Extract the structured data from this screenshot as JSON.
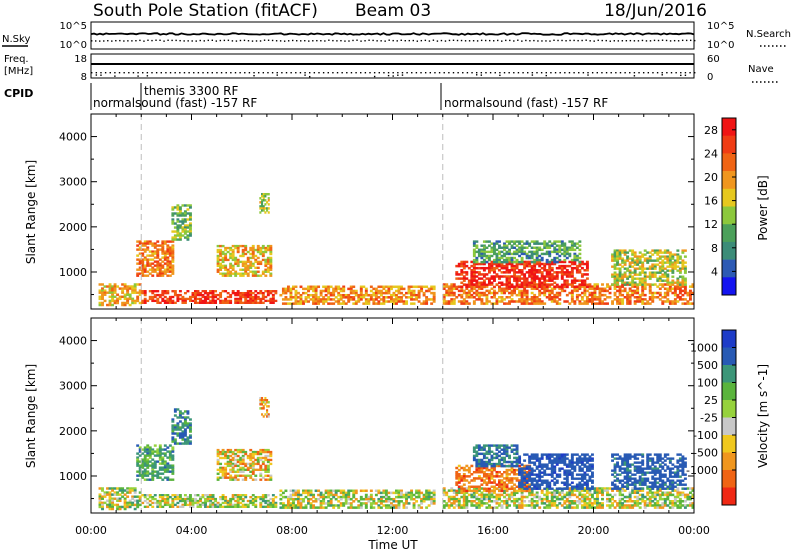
{
  "header": {
    "station": "South Pole Station (fitACF)",
    "beam": "Beam 03",
    "date": "18/Jun/2016"
  },
  "summary": {
    "nsky_label": "N.Sky",
    "nsearch_label": "N.Search",
    "freq_label_line1": "Freq.",
    "freq_label_line2": "[MHz]",
    "nave_label": "Nave",
    "cpid_label": "CPID",
    "nsky_ticks": [
      "10^5",
      "10^0"
    ],
    "nsearch_ticks": [
      "10^5",
      "10^0"
    ],
    "freq_ticks": [
      "18",
      "8"
    ],
    "nave_ticks": [
      "60",
      "0"
    ],
    "cpid_entries": [
      {
        "text": "normalsound (fast) -157 RF",
        "start_hour": 0.0
      },
      {
        "text": "themis 3300 RF",
        "start_hour": 2.0
      },
      {
        "text": "normalsound (fast) -157 RF",
        "start_hour": 14.0
      }
    ]
  },
  "x_ticks": [
    "00:00",
    "04:00",
    "08:00",
    "12:00",
    "16:00",
    "20:00",
    "00:00"
  ],
  "x_label": "Time UT",
  "y_label": "Slant Range [km]",
  "y_ticks": [
    "1000",
    "2000",
    "3000",
    "4000"
  ],
  "power_colorbar": {
    "label": "Power [dB]",
    "ticks": [
      "4",
      "8",
      "12",
      "16",
      "20",
      "24",
      "28"
    ],
    "colors": [
      "#1414f0",
      "#2d5ab4",
      "#3c8c78",
      "#4ba05a",
      "#8cc83c",
      "#e6c81e",
      "#f0961e",
      "#f06414",
      "#f03c14",
      "#f01414"
    ]
  },
  "velocity_colorbar": {
    "label": "Velocity [m s^-1]",
    "ticks": [
      "1000",
      "500",
      "100",
      "25",
      "-25",
      "-100",
      "-500",
      "-1000"
    ],
    "colors": [
      "#1e3cc8",
      "#285ab4",
      "#3c9678",
      "#5ab43c",
      "#96d23c",
      "#c8c8c8",
      "#f0c81e",
      "#f0961e",
      "#f06414",
      "#f02814"
    ]
  },
  "chart_data": [
    {
      "type": "heatmap",
      "title": "Power",
      "xlabel": "Time UT",
      "ylabel": "Slant Range [km]",
      "xlim_hours": [
        0,
        24
      ],
      "ylim_km": [
        180,
        4500
      ],
      "colorbar": {
        "label": "Power [dB]",
        "range": [
          0,
          30
        ]
      },
      "regions": [
        {
          "t0": 0.3,
          "t1": 2.0,
          "r0": 250,
          "r1": 750,
          "value": 18
        },
        {
          "t0": 1.8,
          "t1": 3.3,
          "r0": 900,
          "r1": 1700,
          "value": 22
        },
        {
          "t0": 2.0,
          "t1": 7.4,
          "r0": 300,
          "r1": 600,
          "value": 26
        },
        {
          "t0": 3.2,
          "t1": 4.0,
          "r0": 1700,
          "r1": 2500,
          "value": 12
        },
        {
          "t0": 5.0,
          "t1": 7.2,
          "r0": 900,
          "r1": 1600,
          "value": 18
        },
        {
          "t0": 6.7,
          "t1": 7.1,
          "r0": 2300,
          "r1": 2750,
          "value": 14
        },
        {
          "t0": 7.5,
          "t1": 13.7,
          "r0": 280,
          "r1": 700,
          "value": 20
        },
        {
          "t0": 14.0,
          "t1": 24.0,
          "r0": 280,
          "r1": 750,
          "value": 22
        },
        {
          "t0": 14.5,
          "t1": 19.8,
          "r0": 650,
          "r1": 1250,
          "value": 27
        },
        {
          "t0": 15.2,
          "t1": 19.5,
          "r0": 1200,
          "r1": 1700,
          "value": 10
        },
        {
          "t0": 20.7,
          "t1": 23.7,
          "r0": 700,
          "r1": 1500,
          "value": 15
        }
      ]
    },
    {
      "type": "heatmap",
      "title": "Velocity",
      "xlabel": "Time UT",
      "ylabel": "Slant Range [km]",
      "xlim_hours": [
        0,
        24
      ],
      "ylim_km": [
        180,
        4500
      ],
      "colorbar": {
        "label": "Velocity [m s^-1]",
        "range": [
          -1000,
          1000
        ]
      },
      "regions": [
        {
          "t0": 0.3,
          "t1": 2.0,
          "r0": 250,
          "r1": 750,
          "value": 60
        },
        {
          "t0": 1.8,
          "t1": 3.3,
          "r0": 900,
          "r1": 1700,
          "value": 300
        },
        {
          "t0": 2.0,
          "t1": 7.4,
          "r0": 300,
          "r1": 600,
          "value": 50
        },
        {
          "t0": 3.2,
          "t1": 4.0,
          "r0": 1700,
          "r1": 2500,
          "value": 400
        },
        {
          "t0": 5.0,
          "t1": 7.2,
          "r0": 900,
          "r1": 1600,
          "value": -80
        },
        {
          "t0": 6.7,
          "t1": 7.1,
          "r0": 2300,
          "r1": 2750,
          "value": -200
        },
        {
          "t0": 7.5,
          "t1": 13.7,
          "r0": 280,
          "r1": 700,
          "value": 40
        },
        {
          "t0": 14.0,
          "t1": 24.0,
          "r0": 280,
          "r1": 750,
          "value": 60
        },
        {
          "t0": 14.5,
          "t1": 17.5,
          "r0": 650,
          "r1": 1250,
          "value": -300
        },
        {
          "t0": 17.0,
          "t1": 20.0,
          "r0": 700,
          "r1": 1500,
          "value": 800
        },
        {
          "t0": 15.2,
          "t1": 17.0,
          "r0": 1200,
          "r1": 1700,
          "value": 500
        },
        {
          "t0": 20.7,
          "t1": 23.7,
          "r0": 700,
          "r1": 1500,
          "value": 700
        }
      ]
    }
  ]
}
